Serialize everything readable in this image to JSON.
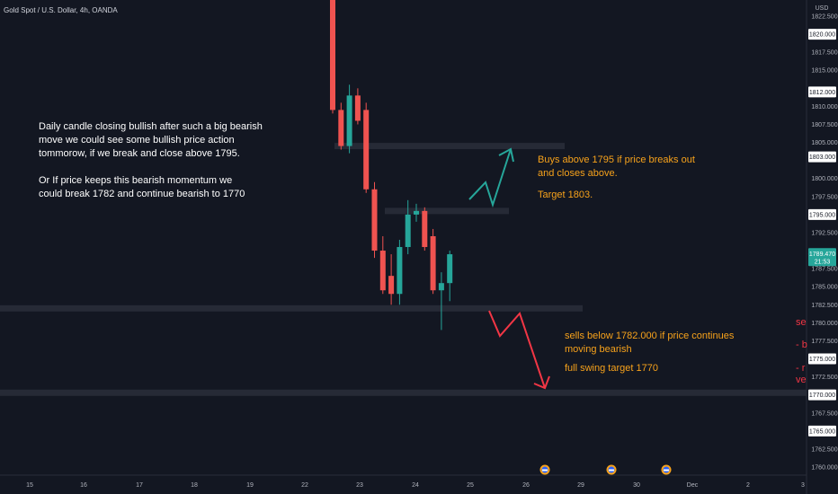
{
  "symbol_title": "Gold Spot / U.S. Dollar, 4h, OANDA",
  "currency_label": "USD",
  "annotations": {
    "left_note": "Daily candle closing bullish after such a big bearish\nmove we could see some bullish price action\ntommorow, if we break and close above 1795.\n\nOr If price keeps this bearish momentum we\ncould break 1782 and continue bearish to 1770",
    "buy_note": "Buys above 1795 if price breaks out\nand closes above.",
    "buy_target": "Target 1803.",
    "sell_note": "sells below 1782.000 if price continues\nmoving bearish",
    "sell_target": "full swing target 1770",
    "cut_off_text": [
      "se",
      "- b",
      "- r",
      "ve"
    ]
  },
  "colors": {
    "background": "#131722",
    "bull": "#26a69a",
    "bear": "#ef5350",
    "level_band": "#2a2e39",
    "up_arrow": "#26a69a",
    "down_arrow": "#f23645",
    "note_orange": "#f7a21b"
  },
  "event_icons": [
    "event-icon",
    "event-icon",
    "event-icon"
  ],
  "chart_data": {
    "type": "candlestick",
    "title": "Gold Spot / U.S. Dollar, 4h, OANDA",
    "y_axis": {
      "unit": "USD",
      "range": [
        1758.5,
        1825
      ],
      "ticks": [
        "1822.500",
        "1817.500",
        "1815.000",
        "1810.000",
        "1807.500",
        "1805.000",
        "1800.000",
        "1797.500",
        "1792.500",
        "1787.500",
        "1785.000",
        "1782.500",
        "1780.000",
        "1777.500",
        "1772.500",
        "1767.500",
        "1762.500",
        "1760.000"
      ],
      "boxed_labels": [
        "1820.000",
        "1812.000",
        "1803.000",
        "1795.000",
        "1789.000",
        "1775.000",
        "1770.000",
        "1765.000"
      ],
      "current_price": "1789.470",
      "countdown": "21:53"
    },
    "x_axis": {
      "ticks": [
        "15",
        "16",
        "17",
        "18",
        "19",
        "22",
        "23",
        "24",
        "25",
        "26",
        "29",
        "30",
        "Dec",
        "2",
        "3"
      ]
    },
    "candles": [
      {
        "o": 1832.0,
        "h": 1840.0,
        "l": 1809.0,
        "c": 1809.5
      },
      {
        "o": 1809.5,
        "h": 1810.5,
        "l": 1804.0,
        "c": 1804.5
      },
      {
        "o": 1804.5,
        "h": 1813.0,
        "l": 1803.5,
        "c": 1811.5
      },
      {
        "o": 1811.5,
        "h": 1812.5,
        "l": 1807.5,
        "c": 1808.0
      },
      {
        "o": 1809.5,
        "h": 1810.5,
        "l": 1798.0,
        "c": 1798.5
      },
      {
        "o": 1798.5,
        "h": 1799.5,
        "l": 1789.0,
        "c": 1790.0
      },
      {
        "o": 1790.0,
        "h": 1792.0,
        "l": 1784.0,
        "c": 1784.5
      },
      {
        "o": 1786.5,
        "h": 1789.5,
        "l": 1782.5,
        "c": 1784.0
      },
      {
        "o": 1784.0,
        "h": 1791.5,
        "l": 1782.5,
        "c": 1790.5
      },
      {
        "o": 1790.5,
        "h": 1797.0,
        "l": 1789.5,
        "c": 1795.0
      },
      {
        "o": 1795.0,
        "h": 1796.5,
        "l": 1794.0,
        "c": 1795.5
      },
      {
        "o": 1795.5,
        "h": 1796.0,
        "l": 1790.0,
        "c": 1790.5
      },
      {
        "o": 1792.0,
        "h": 1793.0,
        "l": 1784.0,
        "c": 1784.5
      },
      {
        "o": 1784.5,
        "h": 1787.0,
        "l": 1779.0,
        "c": 1785.5
      },
      {
        "o": 1785.5,
        "h": 1790.0,
        "l": 1783.0,
        "c": 1789.5
      }
    ],
    "levels": [
      {
        "name": "resistance-zone",
        "price": 1804.5
      },
      {
        "name": "breakout-level",
        "price": 1795.5
      },
      {
        "name": "support-level",
        "price": 1782.0
      },
      {
        "name": "target-1770",
        "price": 1770.3
      }
    ]
  }
}
